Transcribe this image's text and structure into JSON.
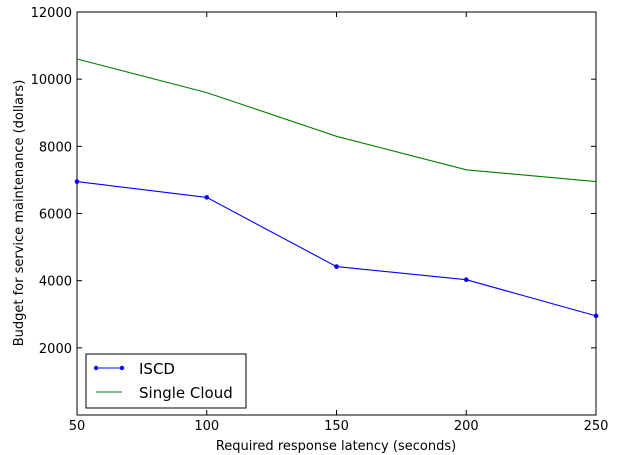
{
  "chart_data": {
    "type": "line",
    "title": "",
    "xlabel": "Required response latency (seconds)",
    "ylabel": "Budget for service maintenance (dollars)",
    "xlim": [
      50,
      250
    ],
    "ylim": [
      0,
      12000
    ],
    "x": [
      50,
      100,
      150,
      200,
      250
    ],
    "x_ticks": [
      50,
      100,
      150,
      200,
      250
    ],
    "y_ticks": [
      2000,
      4000,
      6000,
      8000,
      10000,
      12000
    ],
    "series": [
      {
        "name": "ISCD",
        "values": [
          6950,
          6480,
          4420,
          4030,
          2950
        ],
        "color": "#0000ff",
        "marker": "dot"
      },
      {
        "name": "Single Cloud",
        "values": [
          10600,
          9600,
          8300,
          7300,
          6950
        ],
        "color": "#008000",
        "marker": "none"
      }
    ],
    "grid": false,
    "legend_position": "lower-left"
  }
}
